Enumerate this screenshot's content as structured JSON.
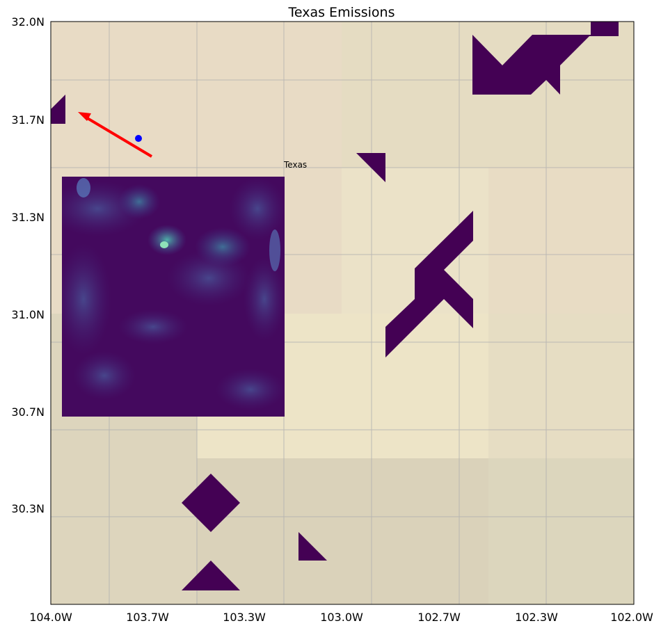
{
  "title": "Texas Emissions",
  "map_label": "Texas",
  "x_ticks": [
    {
      "value": -104.0,
      "label": "104.0W"
    },
    {
      "value": -103.7,
      "label": "103.7W"
    },
    {
      "value": -103.3,
      "label": "103.3W"
    },
    {
      "value": -103.0,
      "label": "103.0W"
    },
    {
      "value": -102.7,
      "label": "102.7W"
    },
    {
      "value": -102.3,
      "label": "102.3W"
    },
    {
      "value": -102.0,
      "label": "102.0W"
    }
  ],
  "y_ticks": [
    {
      "value": 32.0,
      "label": "32.0N"
    },
    {
      "value": 31.7,
      "label": "31.7N"
    },
    {
      "value": 31.3,
      "label": "31.3N"
    },
    {
      "value": 31.0,
      "label": "31.0N"
    },
    {
      "value": 30.7,
      "label": "30.7N"
    },
    {
      "value": 30.3,
      "label": "30.3N"
    }
  ],
  "extent": {
    "lon": [
      -104.0,
      -102.0
    ],
    "lat": [
      30.0,
      32.0
    ]
  },
  "grid": true,
  "colors": {
    "emission_fill": "#440154",
    "marker": "#0000ff",
    "arrow": "#ff0000",
    "grid": "#b0b0b0",
    "terrain": [
      "#e8dbc5",
      "#e5dcc2",
      "#ebe2c8",
      "#ede4c7",
      "#ddd5bd",
      "#d8cfb9",
      "#dcd6bd"
    ]
  },
  "markers": [
    {
      "lon": -103.7,
      "lat": 31.64
    }
  ],
  "arrow": {
    "from": {
      "lon": -103.65,
      "lat": 31.57
    },
    "to": {
      "lon": -103.9,
      "lat": 31.72
    }
  }
}
